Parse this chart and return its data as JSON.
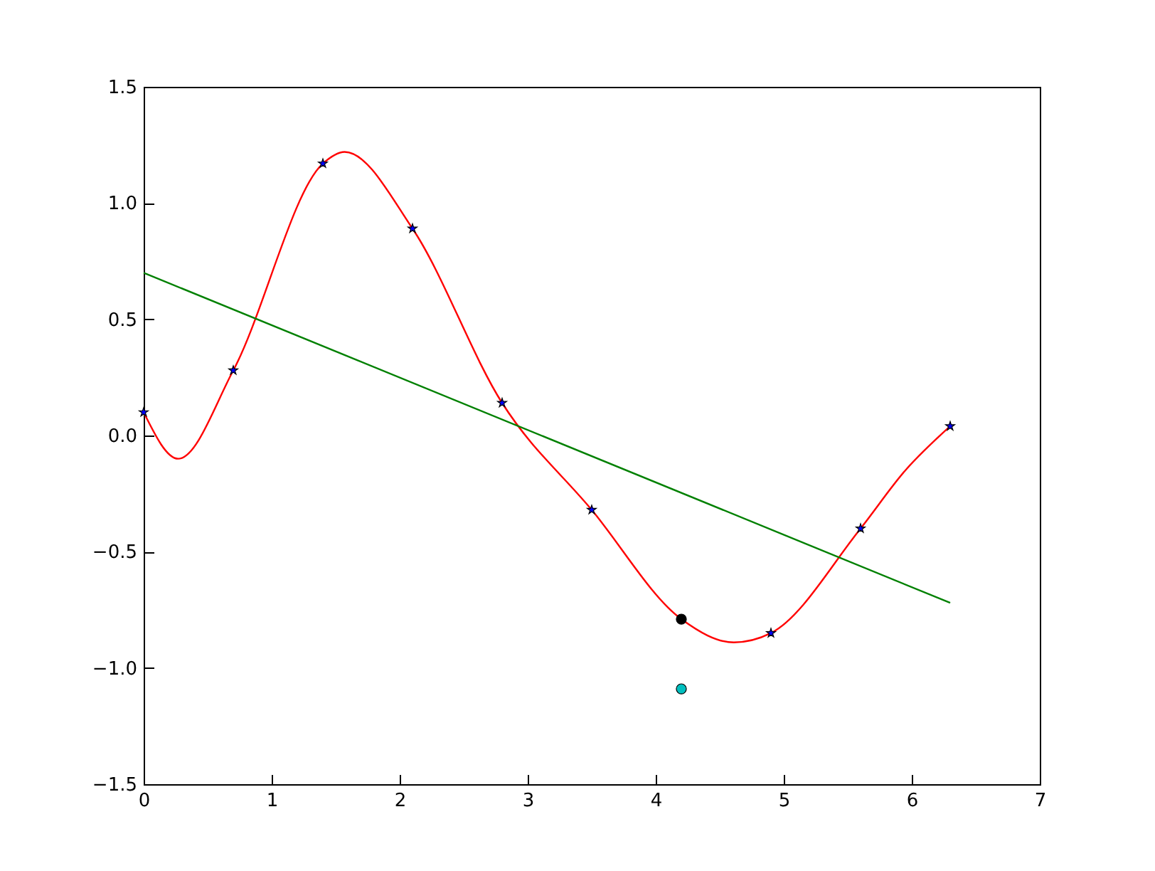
{
  "chart_data": {
    "type": "line",
    "xlim": [
      0,
      7
    ],
    "xticks": [
      0,
      1,
      2,
      3,
      4,
      5,
      6,
      7
    ],
    "ylim": [
      -1.5,
      1.5
    ],
    "yticks": [
      -1.5,
      {
        "value": -1,
        "label": "−1.0"
      },
      -0.5,
      {
        "value": 0,
        "label": "0.0"
      },
      0.5,
      {
        "value": 1,
        "label": "1.0"
      },
      1.5
    ],
    "grid": false,
    "series": [
      {
        "color": "#ff0000",
        "marker": "none",
        "line_style": "solid",
        "x": [
          0,
          0.27,
          0.7,
          1.4,
          1.57,
          2.1,
          2.8,
          3.5,
          4.2,
          4.61,
          4.9,
          5.6,
          5.95,
          6.3
        ],
        "values": [
          0.1,
          -0.1,
          0.28,
          1.17,
          1.22,
          0.89,
          0.14,
          -0.32,
          -0.79,
          -0.89,
          -0.85,
          -0.4,
          -0.15,
          0.04
        ]
      },
      {
        "type": "scatter",
        "color": "#0000ff",
        "marker": "star",
        "x": [
          0,
          0.7,
          1.4,
          2.1,
          2.8,
          3.5,
          4.9,
          5.6,
          6.3
        ],
        "values": [
          0.1,
          0.28,
          1.17,
          0.89,
          0.14,
          -0.32,
          -0.85,
          -0.4,
          0.04
        ]
      },
      {
        "color": "#008000",
        "marker": "none",
        "line_style": "solid",
        "x": [
          0,
          6.3
        ],
        "values": [
          0.7,
          -0.72
        ]
      },
      {
        "type": "scatter",
        "color": "#000000",
        "marker": "circle",
        "x": [
          4.2
        ],
        "values": [
          -0.79
        ]
      },
      {
        "type": "scatter",
        "color": "#00bfbf",
        "marker": "circle",
        "x": [
          4.2
        ],
        "values": [
          -1.09
        ]
      }
    ]
  }
}
